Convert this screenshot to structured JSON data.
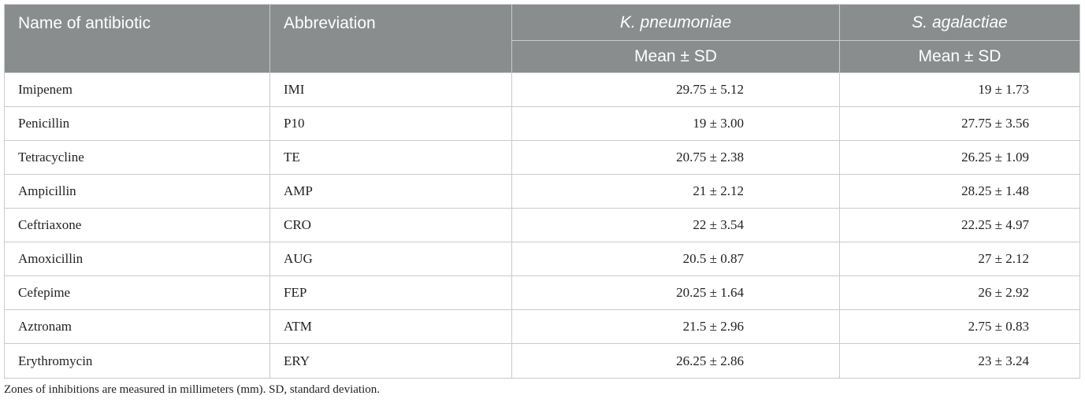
{
  "table": {
    "headers": {
      "name": "Name of antibiotic",
      "abbreviation": "Abbreviation",
      "species_1": "K. pneumoniae",
      "species_2": "S. agalactiae",
      "sub_1": "Mean ± SD",
      "sub_2": "Mean ± SD"
    },
    "rows": [
      {
        "name": "Imipenem",
        "abbr": "IMI",
        "kp": "29.75 ± 5.12",
        "sa": "19 ± 1.73"
      },
      {
        "name": "Penicillin",
        "abbr": "P10",
        "kp": "19 ± 3.00",
        "sa": "27.75 ± 3.56"
      },
      {
        "name": "Tetracycline",
        "abbr": "TE",
        "kp": "20.75 ± 2.38",
        "sa": "26.25 ± 1.09"
      },
      {
        "name": "Ampicillin",
        "abbr": "AMP",
        "kp": "21 ± 2.12",
        "sa": "28.25 ± 1.48"
      },
      {
        "name": "Ceftriaxone",
        "abbr": "CRO",
        "kp": "22 ± 3.54",
        "sa": "22.25 ± 4.97"
      },
      {
        "name": "Amoxicillin",
        "abbr": "AUG",
        "kp": "20.5 ± 0.87",
        "sa": "27 ± 2.12"
      },
      {
        "name": "Cefepime",
        "abbr": "FEP",
        "kp": "20.25 ± 1.64",
        "sa": "26 ± 2.92"
      },
      {
        "name": "Aztronam",
        "abbr": "ATM",
        "kp": "21.5 ± 2.96",
        "sa": "2.75 ± 0.83"
      },
      {
        "name": "Erythromycin",
        "abbr": "ERY",
        "kp": "26.25 ± 2.86",
        "sa": "23 ± 3.24"
      }
    ]
  },
  "footnote": "Zones of inhibitions are measured in millimeters (mm). SD, standard deviation.",
  "colors": {
    "header_bg": "#8a8d8e",
    "header_text": "#ffffff",
    "grid_line": "#c9cbcc"
  }
}
